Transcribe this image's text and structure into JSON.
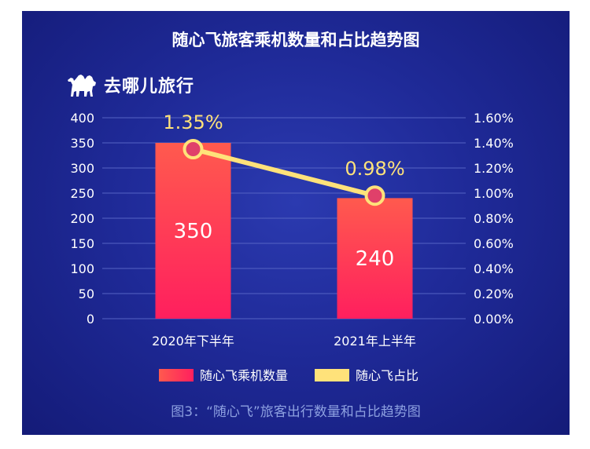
{
  "chart_data": {
    "type": "bar",
    "title": "随心飞旅客乘机数量和占比趋势图",
    "categories": [
      "2020年下半年",
      "2021年上半年"
    ],
    "series": [
      {
        "name": "随心飞乘机数量",
        "type": "bar",
        "axis": "left",
        "values": [
          350,
          240
        ],
        "color": "#ff3a57"
      },
      {
        "name": "随心飞占比",
        "type": "line",
        "axis": "right",
        "values": [
          1.35,
          0.98
        ],
        "labels": [
          "1.35%",
          "0.98%"
        ],
        "color": "#ffe27a"
      }
    ],
    "left_axis": {
      "ylim": [
        0,
        400
      ],
      "ticks": [
        "0",
        "50",
        "100",
        "150",
        "200",
        "250",
        "300",
        "350",
        "400"
      ]
    },
    "right_axis": {
      "ylim": [
        0,
        1.6
      ],
      "ticks": [
        "0.00%",
        "0.20%",
        "0.40%",
        "0.60%",
        "0.80%",
        "1.00%",
        "1.20%",
        "1.40%",
        "1.60%"
      ]
    },
    "grid": true,
    "legend_position": "bottom"
  },
  "brand": {
    "name": "去哪儿旅行",
    "icon": "camel-icon"
  },
  "caption": "图3：“随心飞”旅客出行数量和占比趋势图",
  "colors": {
    "background": "#1f2a98",
    "bar": "#ff3a57",
    "line": "#ffe27a",
    "text": "#ffffff"
  }
}
